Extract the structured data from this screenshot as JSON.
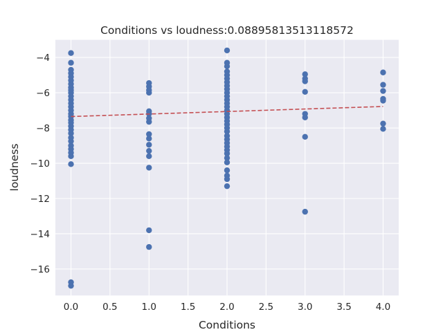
{
  "chart_data": {
    "type": "scatter",
    "title": "Conditions vs loudness:0.08895813513118572",
    "xlabel": "Conditions",
    "ylabel": "loudness",
    "xlim": [
      -0.2,
      4.2
    ],
    "ylim": [
      -17.5,
      -3.0
    ],
    "grid": true,
    "background": "#eaeaf2",
    "grid_color": "#ffffff",
    "x_ticks": [
      0.0,
      0.5,
      1.0,
      1.5,
      2.0,
      2.5,
      3.0,
      3.5,
      4.0
    ],
    "x_tick_labels": [
      "0.0",
      "0.5",
      "1.0",
      "1.5",
      "2.0",
      "2.5",
      "3.0",
      "3.5",
      "4.0"
    ],
    "y_ticks": [
      -16,
      -14,
      -12,
      -10,
      -8,
      -6,
      -4
    ],
    "y_tick_labels": [
      "−16",
      "−14",
      "−12",
      "−10",
      "−8",
      "−6",
      "−4"
    ],
    "series": [
      {
        "type": "scatter",
        "color": "#4c72b0",
        "points": [
          [
            0,
            -3.75
          ],
          [
            0,
            -4.3
          ],
          [
            0,
            -4.7
          ],
          [
            0,
            -4.9
          ],
          [
            0,
            -5.1
          ],
          [
            0,
            -5.3
          ],
          [
            0,
            -5.5
          ],
          [
            0,
            -5.7
          ],
          [
            0,
            -5.85
          ],
          [
            0,
            -6.0
          ],
          [
            0,
            -6.2
          ],
          [
            0,
            -6.4
          ],
          [
            0,
            -6.6
          ],
          [
            0,
            -6.8
          ],
          [
            0,
            -7.0
          ],
          [
            0,
            -7.2
          ],
          [
            0,
            -7.35
          ],
          [
            0,
            -7.55
          ],
          [
            0,
            -7.7
          ],
          [
            0,
            -7.9
          ],
          [
            0,
            -8.1
          ],
          [
            0,
            -8.3
          ],
          [
            0,
            -8.55
          ],
          [
            0,
            -8.75
          ],
          [
            0,
            -9.0
          ],
          [
            0,
            -9.2
          ],
          [
            0,
            -9.4
          ],
          [
            0,
            -9.6
          ],
          [
            0,
            -10.05
          ],
          [
            0,
            -16.75
          ],
          [
            0,
            -16.95
          ],
          [
            1,
            -5.45
          ],
          [
            1,
            -5.65
          ],
          [
            1,
            -5.85
          ],
          [
            1,
            -6.0
          ],
          [
            1,
            -7.05
          ],
          [
            1,
            -7.2
          ],
          [
            1,
            -7.45
          ],
          [
            1,
            -7.65
          ],
          [
            1,
            -8.35
          ],
          [
            1,
            -8.6
          ],
          [
            1,
            -8.95
          ],
          [
            1,
            -9.3
          ],
          [
            1,
            -9.6
          ],
          [
            1,
            -10.25
          ],
          [
            1,
            -13.8
          ],
          [
            1,
            -14.75
          ],
          [
            2,
            -3.6
          ],
          [
            2,
            -4.3
          ],
          [
            2,
            -4.5
          ],
          [
            2,
            -4.8
          ],
          [
            2,
            -5.0
          ],
          [
            2,
            -5.2
          ],
          [
            2,
            -5.4
          ],
          [
            2,
            -5.6
          ],
          [
            2,
            -5.8
          ],
          [
            2,
            -6.0
          ],
          [
            2,
            -6.2
          ],
          [
            2,
            -6.4
          ],
          [
            2,
            -6.6
          ],
          [
            2,
            -6.8
          ],
          [
            2,
            -7.0
          ],
          [
            2,
            -7.2
          ],
          [
            2,
            -7.4
          ],
          [
            2,
            -7.6
          ],
          [
            2,
            -7.8
          ],
          [
            2,
            -8.0
          ],
          [
            2,
            -8.2
          ],
          [
            2,
            -8.45
          ],
          [
            2,
            -8.65
          ],
          [
            2,
            -8.85
          ],
          [
            2,
            -9.05
          ],
          [
            2,
            -9.25
          ],
          [
            2,
            -9.45
          ],
          [
            2,
            -9.7
          ],
          [
            2,
            -9.95
          ],
          [
            2,
            -10.4
          ],
          [
            2,
            -10.7
          ],
          [
            2,
            -10.9
          ],
          [
            2,
            -11.3
          ],
          [
            3,
            -4.95
          ],
          [
            3,
            -5.2
          ],
          [
            3,
            -5.35
          ],
          [
            3,
            -5.95
          ],
          [
            3,
            -7.2
          ],
          [
            3,
            -7.4
          ],
          [
            3,
            -8.5
          ],
          [
            3,
            -12.75
          ],
          [
            4,
            -4.85
          ],
          [
            4,
            -5.55
          ],
          [
            4,
            -5.9
          ],
          [
            4,
            -6.35
          ],
          [
            4,
            -6.45
          ],
          [
            4,
            -7.75
          ],
          [
            4,
            -8.05
          ]
        ]
      },
      {
        "type": "line",
        "style": "dashed",
        "color": "#c44e52",
        "points": [
          [
            0,
            -7.35
          ],
          [
            4,
            -6.78
          ]
        ]
      }
    ]
  }
}
